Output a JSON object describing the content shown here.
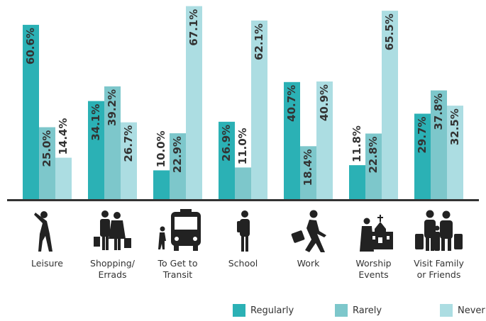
{
  "chart_data": {
    "type": "bar",
    "categories": [
      "Leisure",
      "Shopping/ Errads",
      "To Get to Transit",
      "School",
      "Work",
      "Worship Events",
      "Visit Family or Friends"
    ],
    "series": [
      {
        "name": "Regularly",
        "color": "#2bb1b5",
        "values": [
          60.6,
          34.1,
          10.0,
          26.9,
          40.7,
          11.8,
          29.7
        ],
        "value_labels": [
          "60.6%",
          "34.1%",
          "10.0%",
          "26.9%",
          "40.7%",
          "11.8%",
          "29.7%"
        ]
      },
      {
        "name": "Rarely",
        "color": "#7dc7cb",
        "values": [
          25.0,
          39.2,
          22.9,
          11.0,
          18.4,
          22.8,
          37.8
        ],
        "value_labels": [
          "25.0%",
          "39.2%",
          "22.9%",
          "11.0%",
          "18.4%",
          "22.8%",
          "37.8%"
        ]
      },
      {
        "name": "Never",
        "color": "#acdde2",
        "values": [
          14.4,
          26.7,
          67.1,
          62.1,
          40.9,
          65.5,
          32.5
        ],
        "value_labels": [
          "14.4%",
          "26.7%",
          "67.1%",
          "62.1%",
          "40.9%",
          "65.5%",
          "32.5%"
        ]
      }
    ],
    "ylim": [
      0,
      68
    ],
    "legend": "bottom"
  }
}
